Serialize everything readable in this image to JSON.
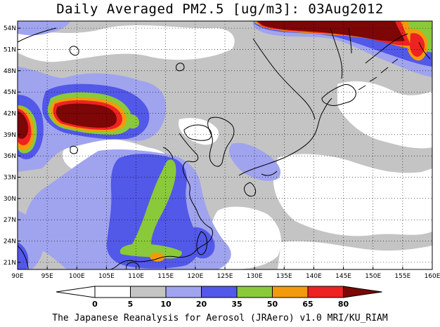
{
  "title": "Daily Averaged PM2.5 [ug/m3]: 03Aug2012",
  "footer": "The Japanese Reanalysis for Aerosol (JRAero) v1.0 MRI/KU_RIAM",
  "map": {
    "lon_range": [
      90,
      160
    ],
    "lat_range": [
      20,
      55
    ],
    "lon_ticks": [
      {
        "value": 90,
        "label": "90E"
      },
      {
        "value": 95,
        "label": "95E"
      },
      {
        "value": 100,
        "label": "100E"
      },
      {
        "value": 105,
        "label": "105E"
      },
      {
        "value": 110,
        "label": "110E"
      },
      {
        "value": 115,
        "label": "115E"
      },
      {
        "value": 120,
        "label": "120E"
      },
      {
        "value": 125,
        "label": "125E"
      },
      {
        "value": 130,
        "label": "130E"
      },
      {
        "value": 135,
        "label": "135E"
      },
      {
        "value": 140,
        "label": "140E"
      },
      {
        "value": 145,
        "label": "145E"
      },
      {
        "value": 150,
        "label": "150E"
      },
      {
        "value": 155,
        "label": "155E"
      },
      {
        "value": 160,
        "label": "160E"
      }
    ],
    "lat_ticks": [
      {
        "value": 21,
        "label": "21N"
      },
      {
        "value": 24,
        "label": "24N"
      },
      {
        "value": 27,
        "label": "27N"
      },
      {
        "value": 30,
        "label": "30N"
      },
      {
        "value": 33,
        "label": "33N"
      },
      {
        "value": 36,
        "label": "36N"
      },
      {
        "value": 39,
        "label": "39N"
      },
      {
        "value": 42,
        "label": "42N"
      },
      {
        "value": 45,
        "label": "45N"
      },
      {
        "value": 48,
        "label": "48N"
      },
      {
        "value": 51,
        "label": "51N"
      },
      {
        "value": 54,
        "label": "54N"
      }
    ],
    "grid": "dotted",
    "colors": {
      "c0_5": "#ffffff",
      "c5_10": "#c4c4c4",
      "c10_20": "#a0a4ee",
      "c20_35": "#5258e8",
      "c35_50": "#8ac93a",
      "c50_65": "#f39a0c",
      "c65_80": "#ee2222",
      "c80_plus": "#7d0606",
      "coast": "#000000"
    }
  },
  "colorbar": {
    "levels": [
      "0",
      "5",
      "10",
      "20",
      "35",
      "50",
      "65",
      "80"
    ],
    "colors": [
      "#ffffff",
      "#c4c4c4",
      "#a0a4ee",
      "#5258e8",
      "#8ac93a",
      "#f39a0c",
      "#ee2222",
      "#7d0606"
    ]
  }
}
